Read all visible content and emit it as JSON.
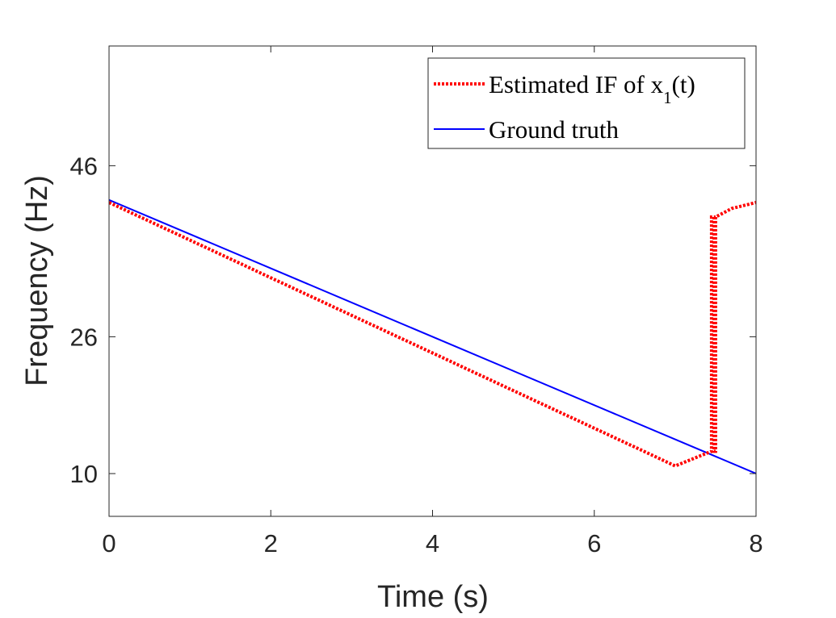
{
  "chart_data": {
    "type": "line",
    "xlabel": "Time (s)",
    "ylabel": "Frequency (Hz)",
    "xlim": [
      0,
      8
    ],
    "ylim": [
      5,
      60
    ],
    "xticks": [
      0,
      2,
      4,
      6,
      8
    ],
    "xtick_labels": [
      "0",
      "2",
      "4",
      "6",
      "8"
    ],
    "yticks": [
      10,
      26,
      46
    ],
    "ytick_labels": [
      "10",
      "26",
      "46"
    ],
    "grid": false,
    "legend_position": "top-right",
    "series": [
      {
        "name": "Estimated IF of x1(t)",
        "legend": {
          "prefix": "Estimated IF of x",
          "subscript": "1",
          "suffix": "(t)"
        },
        "style": "dotted",
        "color": "#ff0000",
        "x": [
          0.0,
          0.5,
          1.0,
          1.5,
          2.0,
          2.5,
          3.0,
          3.5,
          4.0,
          4.5,
          5.0,
          5.5,
          6.0,
          6.5,
          7.0,
          7.45,
          7.45,
          7.48,
          7.48,
          7.5,
          7.5,
          7.7,
          8.0
        ],
        "y": [
          41.7,
          39.5,
          37.3,
          35.1,
          32.9,
          30.7,
          28.5,
          26.3,
          24.1,
          21.9,
          19.7,
          17.5,
          15.3,
          13.1,
          10.9,
          12.6,
          40.0,
          40.0,
          12.6,
          12.6,
          40.0,
          41.0,
          41.7
        ]
      },
      {
        "name": "Ground truth",
        "style": "solid",
        "color": "#0000ff",
        "x": [
          0,
          8
        ],
        "y": [
          42,
          10
        ]
      }
    ]
  }
}
